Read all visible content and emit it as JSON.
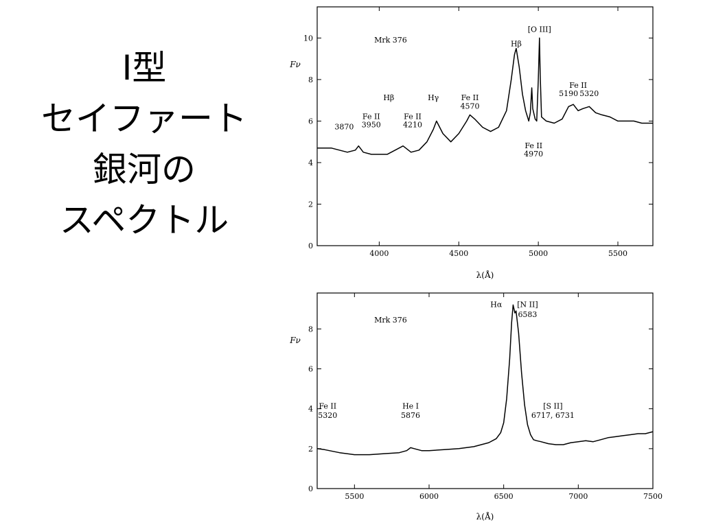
{
  "slide": {
    "title_lines": [
      "I型",
      "セイファート",
      "銀河の",
      "スペクトル"
    ]
  },
  "chart_data": [
    {
      "type": "line",
      "xlabel": "λ(Å)",
      "ylabel": "Fν",
      "object_label": "Mrk 376",
      "xlim": [
        3610,
        5720
      ],
      "ylim": [
        0,
        11.5
      ],
      "x_ticks": [
        4000,
        4500,
        5000,
        5500
      ],
      "y_ticks": [
        0,
        2,
        4,
        6,
        8,
        10
      ],
      "series": [
        {
          "x": [
            3610,
            3650,
            3700,
            3750,
            3800,
            3850,
            3870,
            3900,
            3950,
            4000,
            4050,
            4100,
            4150,
            4200,
            4250,
            4300,
            4340,
            4360,
            4400,
            4450,
            4500,
            4550,
            4570,
            4600,
            4650,
            4700,
            4750,
            4800,
            4830,
            4850,
            4861,
            4880,
            4900,
            4920,
            4940,
            4950,
            4959,
            4965,
            4980,
            4990,
            5000,
            5007,
            5012,
            5020,
            5050,
            5100,
            5150,
            5190,
            5220,
            5250,
            5280,
            5320,
            5360,
            5400,
            5450,
            5500,
            5550,
            5600,
            5650,
            5700,
            5720
          ],
          "y": [
            4.7,
            4.7,
            4.7,
            4.6,
            4.5,
            4.6,
            4.8,
            4.5,
            4.4,
            4.4,
            4.4,
            4.6,
            4.8,
            4.5,
            4.6,
            5.0,
            5.6,
            6.0,
            5.4,
            5.0,
            5.4,
            6.0,
            6.3,
            6.1,
            5.7,
            5.5,
            5.7,
            6.5,
            8.0,
            9.2,
            9.5,
            8.6,
            7.3,
            6.5,
            6.0,
            6.4,
            7.6,
            6.6,
            6.1,
            6.0,
            8.0,
            10.0,
            8.2,
            6.2,
            6.0,
            5.9,
            6.1,
            6.7,
            6.8,
            6.5,
            6.6,
            6.7,
            6.4,
            6.3,
            6.2,
            6.0,
            6.0,
            6.0,
            5.9,
            5.9,
            5.9
          ]
        }
      ],
      "annotations": [
        {
          "label": "Hβ",
          "x": 4861,
          "y": 9.6
        },
        {
          "label": "[O III]",
          "x": 5007,
          "y": 10.3
        },
        {
          "label": "Hβ",
          "x": 4060,
          "y": 7.0
        },
        {
          "label": "Hγ",
          "x": 4340,
          "y": 7.0
        },
        {
          "label": "Fe II",
          "x": 4570,
          "y": 7.0
        },
        {
          "label": "4570",
          "x": 4570,
          "y": 6.6
        },
        {
          "label": "3870",
          "x": 3780,
          "y": 5.6
        },
        {
          "label": "Fe II",
          "x": 3950,
          "y": 6.1
        },
        {
          "label": "3950",
          "x": 3950,
          "y": 5.7
        },
        {
          "label": "Fe II",
          "x": 4210,
          "y": 6.1
        },
        {
          "label": "4210",
          "x": 4210,
          "y": 5.7
        },
        {
          "label": "Fe II",
          "x": 5250,
          "y": 7.6
        },
        {
          "label": "5190",
          "x": 5190,
          "y": 7.2
        },
        {
          "label": "5320",
          "x": 5320,
          "y": 7.2
        },
        {
          "label": "Fe II",
          "x": 4970,
          "y": 4.7
        },
        {
          "label": "4970",
          "x": 4970,
          "y": 4.3
        }
      ]
    },
    {
      "type": "line",
      "xlabel": "λ(Å)",
      "ylabel": "Fν",
      "object_label": "Mrk 376",
      "xlim": [
        5250,
        7500
      ],
      "ylim": [
        0,
        9.8
      ],
      "x_ticks": [
        5500,
        6000,
        6500,
        7000,
        7500
      ],
      "y_ticks": [
        0,
        2,
        4,
        6,
        8
      ],
      "series": [
        {
          "x": [
            5250,
            5300,
            5400,
            5500,
            5600,
            5700,
            5800,
            5850,
            5876,
            5900,
            5950,
            6000,
            6100,
            6200,
            6300,
            6400,
            6450,
            6480,
            6500,
            6520,
            6540,
            6553,
            6563,
            6575,
            6583,
            6600,
            6620,
            6640,
            6660,
            6680,
            6700,
            6720,
            6750,
            6800,
            6850,
            6900,
            6950,
            7000,
            7050,
            7100,
            7150,
            7200,
            7250,
            7300,
            7350,
            7400,
            7450,
            7500
          ],
          "y": [
            2.0,
            1.95,
            1.8,
            1.7,
            1.7,
            1.75,
            1.8,
            1.9,
            2.05,
            2.0,
            1.9,
            1.9,
            1.95,
            2.0,
            2.1,
            2.3,
            2.5,
            2.8,
            3.3,
            4.5,
            6.5,
            8.3,
            9.2,
            8.8,
            8.9,
            7.8,
            5.8,
            4.2,
            3.2,
            2.7,
            2.45,
            2.4,
            2.35,
            2.25,
            2.2,
            2.2,
            2.3,
            2.35,
            2.4,
            2.35,
            2.45,
            2.55,
            2.6,
            2.65,
            2.7,
            2.75,
            2.75,
            2.85
          ]
        }
      ],
      "annotations": [
        {
          "label": "Hα",
          "x": 6450,
          "y": 9.1
        },
        {
          "label": "[N II]",
          "x": 6660,
          "y": 9.1
        },
        {
          "label": "6583",
          "x": 6660,
          "y": 8.6
        },
        {
          "label": "Fe II",
          "x": 5320,
          "y": 4.0
        },
        {
          "label": "5320",
          "x": 5320,
          "y": 3.55
        },
        {
          "label": "He I",
          "x": 5876,
          "y": 4.0
        },
        {
          "label": "5876",
          "x": 5876,
          "y": 3.55
        },
        {
          "label": "[S II]",
          "x": 6830,
          "y": 4.0
        },
        {
          "label": "6717, 6731",
          "x": 6830,
          "y": 3.55
        }
      ]
    }
  ]
}
